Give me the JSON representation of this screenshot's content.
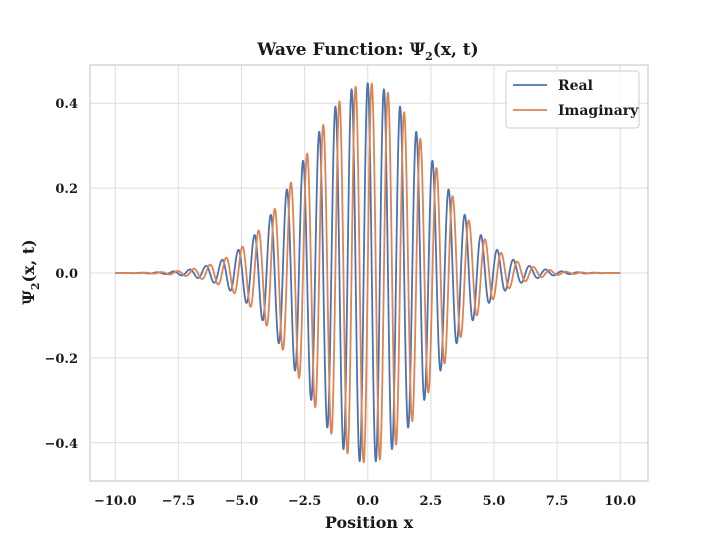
{
  "chart_data": {
    "type": "line",
    "title_main": "Wave Function: ",
    "title_symbol": "Ψ",
    "title_sub": "2",
    "title_args": "(x, t)",
    "xlabel": "Position x",
    "ylabel_symbol": "Ψ",
    "ylabel_sub": "2",
    "ylabel_args": "(x, t)",
    "xlim": [
      -11,
      11.1
    ],
    "ylim": [
      -0.49,
      0.49
    ],
    "xticks": [
      -10.0,
      -7.5,
      -5.0,
      -2.5,
      0.0,
      2.5,
      5.0,
      7.5,
      10.0
    ],
    "xtick_labels": [
      "−10.0",
      "−7.5",
      "−5.0",
      "−2.5",
      "0.0",
      "2.5",
      "5.0",
      "7.5",
      "10.0"
    ],
    "yticks": [
      -0.4,
      -0.2,
      0.0,
      0.2,
      0.4
    ],
    "ytick_labels": [
      "−0.4",
      "−0.2",
      "0.0",
      "0.2",
      "0.4"
    ],
    "grid": true,
    "legend_placement": "top-right",
    "x_range": [
      -10,
      10
    ],
    "envelope_amplitude": 0.447,
    "envelope_width_sigma": 2.5,
    "wavenumber": 9.8,
    "series": [
      {
        "name": "Real",
        "color": "#4c72b0",
        "component": "cos"
      },
      {
        "name": "Imaginary",
        "color": "#dd8452",
        "component": "sin"
      }
    ]
  }
}
